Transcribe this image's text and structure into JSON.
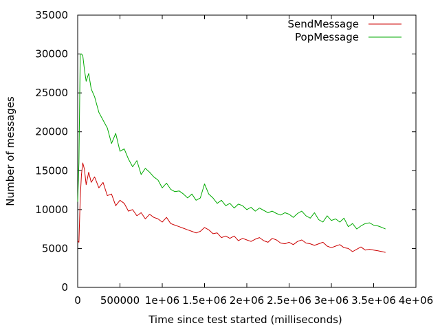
{
  "chart_data": {
    "type": "line",
    "title": "",
    "xlabel": "Time since test started (milliseconds)",
    "ylabel": "Number of messages",
    "xlim": [
      0,
      4000000
    ],
    "ylim": [
      0,
      35000
    ],
    "x_ticks": [
      0,
      500000,
      1000000,
      1500000,
      2000000,
      2500000,
      3000000,
      3500000,
      4000000
    ],
    "x_tick_labels": [
      "0",
      "500000",
      "1e+06",
      "1.5e+06",
      "2e+06",
      "2.5e+06",
      "3e+06",
      "3.5e+06",
      "4e+06"
    ],
    "y_ticks": [
      0,
      5000,
      10000,
      15000,
      20000,
      25000,
      30000,
      35000
    ],
    "y_tick_labels": [
      "0",
      "5000",
      "10000",
      "15000",
      "20000",
      "25000",
      "30000",
      "35000"
    ],
    "grid": false,
    "legend_position": "top-right",
    "series": [
      {
        "name": "SendMessage",
        "color": "#cc0000",
        "x": [
          0,
          15000,
          30000,
          45000,
          60000,
          80000,
          100000,
          130000,
          160000,
          200000,
          250000,
          300000,
          350000,
          400000,
          450000,
          500000,
          550000,
          600000,
          650000,
          700000,
          750000,
          800000,
          850000,
          900000,
          950000,
          1000000,
          1050000,
          1100000,
          1150000,
          1200000,
          1250000,
          1300000,
          1350000,
          1400000,
          1450000,
          1500000,
          1550000,
          1600000,
          1650000,
          1700000,
          1750000,
          1800000,
          1850000,
          1900000,
          1950000,
          2000000,
          2050000,
          2100000,
          2150000,
          2200000,
          2250000,
          2300000,
          2350000,
          2400000,
          2450000,
          2500000,
          2550000,
          2600000,
          2650000,
          2700000,
          2750000,
          2800000,
          2850000,
          2900000,
          2950000,
          3000000,
          3050000,
          3100000,
          3150000,
          3200000,
          3250000,
          3300000,
          3350000,
          3400000,
          3450000,
          3500000,
          3550000,
          3600000,
          3640000
        ],
        "values": [
          6000,
          5800,
          11500,
          14500,
          16000,
          15200,
          13200,
          14800,
          13500,
          14200,
          12800,
          13500,
          11800,
          12000,
          10500,
          11200,
          10800,
          9800,
          10000,
          9200,
          9600,
          8800,
          9400,
          9000,
          8800,
          8400,
          9000,
          8200,
          8000,
          7800,
          7600,
          7400,
          7200,
          7000,
          7200,
          7700,
          7400,
          6900,
          7000,
          6400,
          6600,
          6300,
          6600,
          6000,
          6300,
          6100,
          5900,
          6200,
          6400,
          6000,
          5800,
          6300,
          6100,
          5700,
          5600,
          5800,
          5500,
          5900,
          6100,
          5700,
          5600,
          5400,
          5600,
          5800,
          5300,
          5100,
          5300,
          5500,
          5100,
          5000,
          4600,
          4900,
          5200,
          4800,
          4900,
          4800,
          4700,
          4600,
          4500
        ]
      },
      {
        "name": "PopMessage",
        "color": "#00aa00",
        "x": [
          0,
          15000,
          30000,
          45000,
          60000,
          80000,
          100000,
          130000,
          160000,
          200000,
          250000,
          300000,
          350000,
          400000,
          450000,
          500000,
          550000,
          600000,
          650000,
          700000,
          750000,
          800000,
          850000,
          900000,
          950000,
          1000000,
          1050000,
          1100000,
          1150000,
          1200000,
          1250000,
          1300000,
          1350000,
          1400000,
          1450000,
          1500000,
          1550000,
          1600000,
          1650000,
          1700000,
          1750000,
          1800000,
          1850000,
          1900000,
          1950000,
          2000000,
          2050000,
          2100000,
          2150000,
          2200000,
          2250000,
          2300000,
          2350000,
          2400000,
          2450000,
          2500000,
          2550000,
          2600000,
          2650000,
          2700000,
          2750000,
          2800000,
          2850000,
          2900000,
          2950000,
          3000000,
          3050000,
          3100000,
          3150000,
          3200000,
          3250000,
          3300000,
          3350000,
          3400000,
          3450000,
          3500000,
          3550000,
          3600000,
          3640000
        ],
        "values": [
          11000,
          16000,
          30000,
          30000,
          29800,
          28000,
          26500,
          27500,
          25500,
          24500,
          22500,
          21500,
          20500,
          18500,
          19800,
          17500,
          17800,
          16500,
          15500,
          16300,
          14500,
          15300,
          14800,
          14200,
          13800,
          12800,
          13400,
          12600,
          12300,
          12400,
          12000,
          11500,
          12000,
          11200,
          11500,
          13300,
          12000,
          11500,
          10800,
          11200,
          10500,
          10800,
          10200,
          10700,
          10500,
          10000,
          10300,
          9800,
          10200,
          9900,
          9600,
          9800,
          9500,
          9300,
          9600,
          9400,
          9000,
          9500,
          9800,
          9200,
          8900,
          9600,
          8700,
          8400,
          9200,
          8600,
          8800,
          8400,
          8900,
          7800,
          8200,
          7500,
          7900,
          8200,
          8300,
          8000,
          7900,
          7700,
          7500
        ]
      }
    ]
  }
}
